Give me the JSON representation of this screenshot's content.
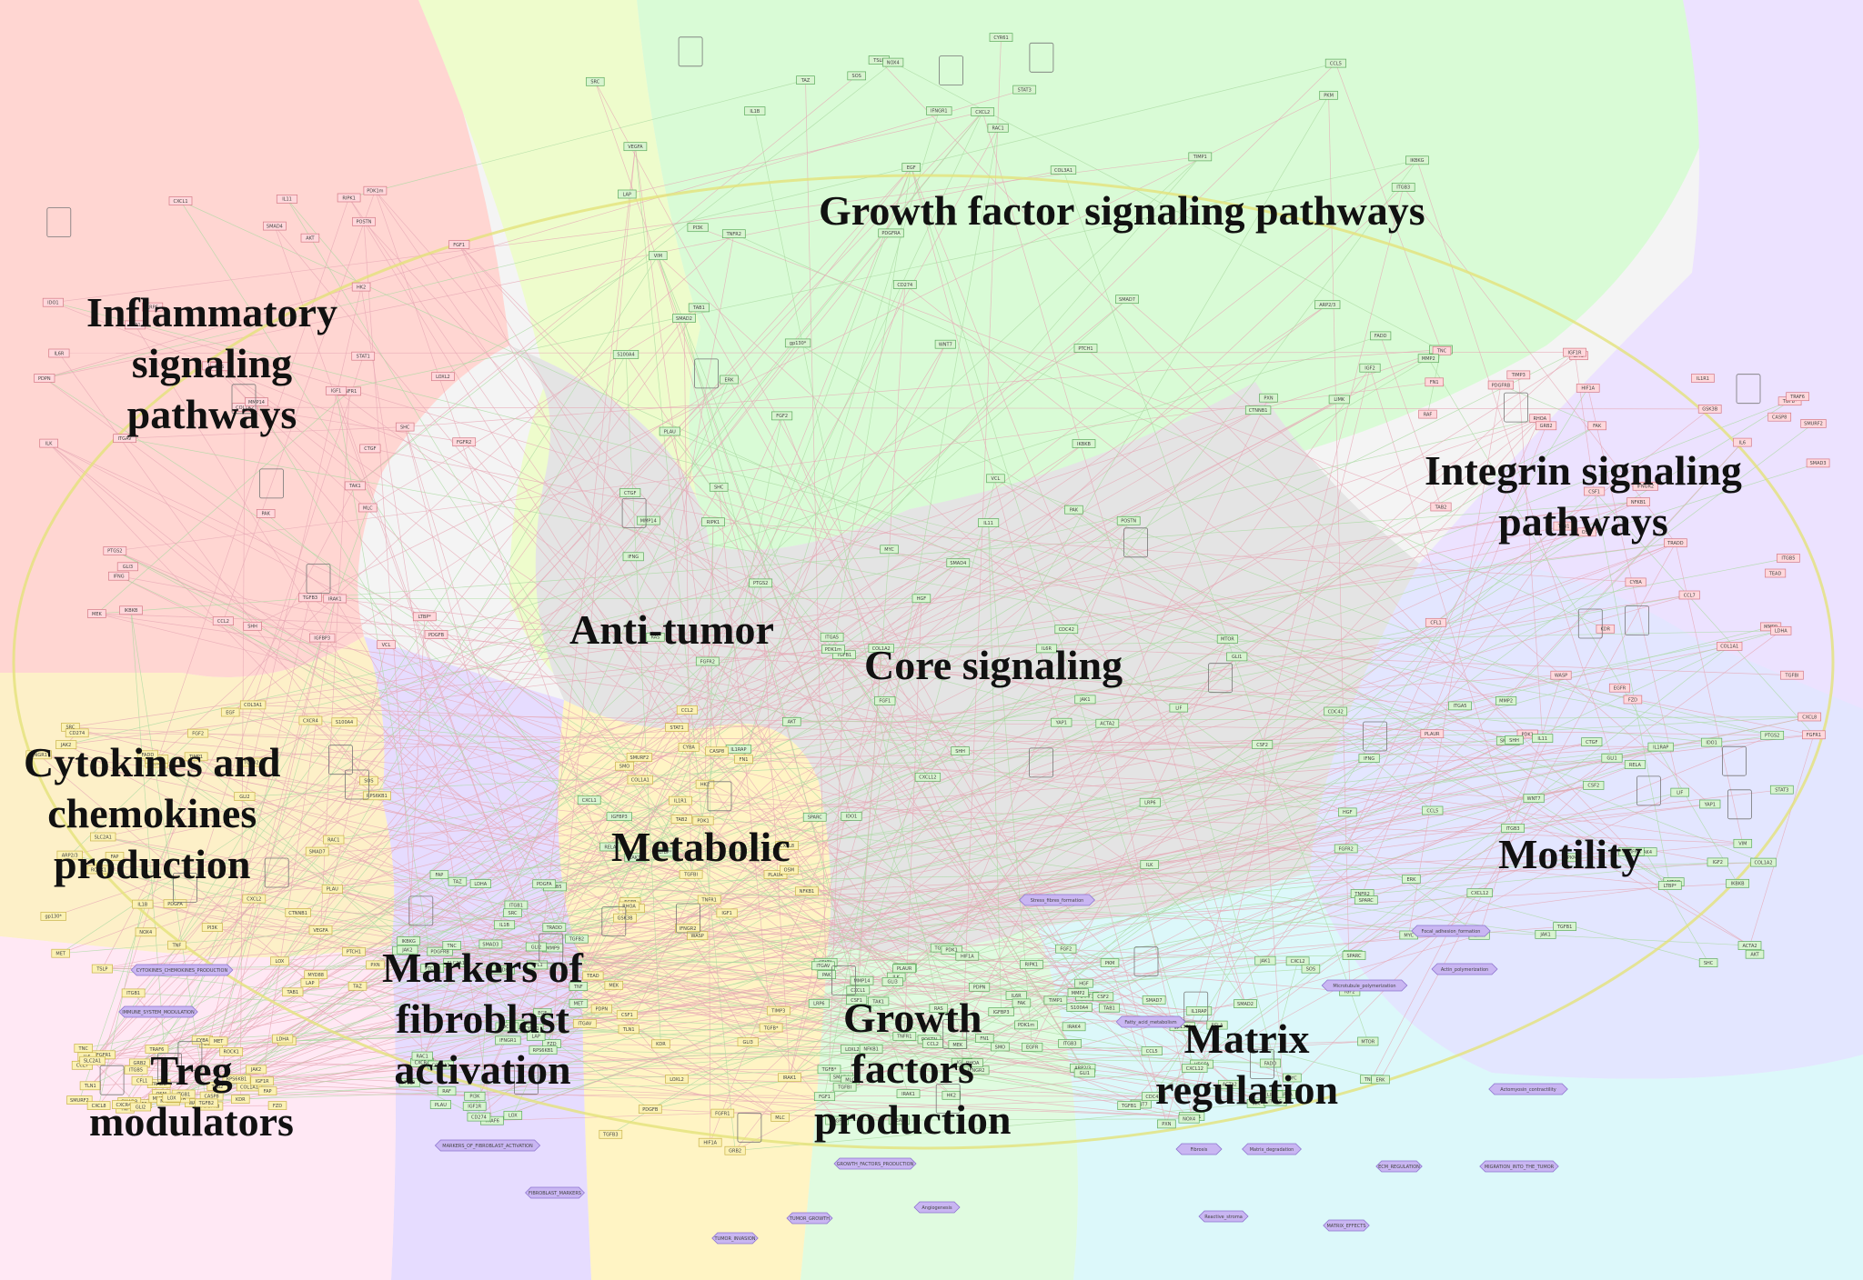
{
  "diagram": {
    "regions": [
      {
        "id": "inflammatory",
        "title": [
          "Inflammatory",
          "signaling",
          "pathways"
        ],
        "color": "#ffd6d2"
      },
      {
        "id": "growth_factor",
        "title": [
          "Growth factor signaling pathways"
        ],
        "color": "#d9fbd6"
      },
      {
        "id": "integrin",
        "title": [
          "Integrin signaling",
          "pathways"
        ],
        "color": "#ece2ff"
      },
      {
        "id": "anti_tumor",
        "title": [
          "Anti-tumor"
        ],
        "color": "#eefccc"
      },
      {
        "id": "core",
        "title": [
          "Core signaling"
        ],
        "color": "#e4e4e4"
      },
      {
        "id": "cytokines",
        "title": [
          "Cytokines and",
          "chemokines",
          "production"
        ],
        "color": "#fdf0c8"
      },
      {
        "id": "metabolic",
        "title": [
          "Metabolic"
        ],
        "color": "#fff4c4"
      },
      {
        "id": "motility",
        "title": [
          "Motility"
        ],
        "color": "#e3e6ff"
      },
      {
        "id": "markers",
        "title": [
          "Markers of",
          "fibroblast",
          "activation"
        ],
        "color": "#e6dcff"
      },
      {
        "id": "gf_production",
        "title": [
          "Growth",
          "factors",
          "production"
        ],
        "color": "#e0fbe0"
      },
      {
        "id": "matrix",
        "title": [
          "Matrix",
          "regulation"
        ],
        "color": "#dcf8fa"
      },
      {
        "id": "treg",
        "title": [
          "Treg",
          "modulators"
        ],
        "color": "#ffe8f4"
      }
    ],
    "colors": {
      "edge": "#e6a7b4",
      "edge_green": "#a9d9a0",
      "ellipse": "#e4e27a",
      "node_green_fill": "#d8f4d0",
      "node_green_stroke": "#5caa5c",
      "node_yellow_fill": "#fbf1b4",
      "node_yellow_stroke": "#c9b34a",
      "node_pink_fill": "#ffd8dc",
      "node_pink_stroke": "#d47a86",
      "phenotype_fill": "#c9b6f2",
      "phenotype_stroke": "#8d74cf"
    },
    "phenotypes": [
      "MIGRATION_INTO_THE_TUMOR",
      "ECM_REGULATION",
      "TUMOR_GROWTH",
      "GROWTH_FACTORS_PRODUCTION",
      "MARKERS_OF_FIBROBLAST_ACTIVATION",
      "FIBROBLAST_MARKERS",
      "TUMOR_INVASION",
      "MATRIX_EFFECTS",
      "CYTOKINES_CHEMOKINES_PRODUCTION",
      "IMMUNE_SYSTEM_MODULATION",
      "Angiogenesis",
      "Reactive_stroma",
      "Fibrosis",
      "Matrix_degradation",
      "Focal_adhesion_formation",
      "Actin_polymerization",
      "Microtubule_polymerization",
      "Actomyosin_contractility",
      "Stress_fibres_formation",
      "Fatty_acid_metabolism"
    ],
    "nodes": [
      "LTBP*",
      "LAP",
      "TGFB*",
      "TGFB1",
      "TGFB2",
      "TGFB3",
      "SMAD2",
      "SMAD3",
      "SMAD4",
      "SMAD7",
      "SMURF2",
      "IFNG",
      "IFNGR1",
      "IFNGR2",
      "JAK1",
      "JAK2",
      "STAT1",
      "STAT3",
      "IL6",
      "IL6R",
      "gp130*",
      "OSM",
      "LIF",
      "IL1B",
      "IL1R1",
      "IL1RAP",
      "MYD88",
      "IRAK1",
      "IRAK4",
      "TRAF6",
      "TAK1",
      "TAB1",
      "TAB2",
      "IKBKB",
      "IKBKG",
      "NFKB1",
      "RELA",
      "TNF",
      "TNFR1",
      "TNFR2",
      "TRADD",
      "RIPK1",
      "FADD",
      "CASP8",
      "PTGS2",
      "PLAU",
      "PLAUR",
      "CXCL12",
      "CXCR4",
      "CCL2",
      "CCL5",
      "CCL7",
      "CXCL1",
      "CXCL2",
      "CXCL8",
      "IL11",
      "TSLP",
      "CSF1",
      "CSF2",
      "PDGFA",
      "PDGFB",
      "PDGFRA",
      "PDGFRB",
      "FGF1",
      "FGF2",
      "FGFR1",
      "FGFR2",
      "EGF",
      "EGFR",
      "HGF",
      "MET",
      "IGF1",
      "IGF2",
      "IGF1R",
      "IGFBP3",
      "VEGFA",
      "KDR",
      "SHH",
      "PTCH1",
      "SMO",
      "GLI1",
      "GLI2",
      "GLI3",
      "WNT7",
      "FZD",
      "LRP6",
      "CTNNB1",
      "GSK3B",
      "AKT",
      "PI3K",
      "PDK1",
      "MTOR",
      "RPS6KB1",
      "MEK",
      "ERK",
      "RAF",
      "RAS",
      "SOS",
      "GRB2",
      "SHC",
      "SRC",
      "FAK",
      "ITGA5",
      "ITGB1",
      "ITGAV",
      "ITGB3",
      "ITGB5",
      "ILK",
      "PXN",
      "TLN1",
      "VCL",
      "RAC1",
      "RHOA",
      "CDC42",
      "ROCK1",
      "MLC",
      "LIMK",
      "CFL1",
      "PAK",
      "ARP2/3",
      "WASP",
      "YAP1",
      "TAZ",
      "TEAD",
      "ACTA2",
      "FAP",
      "PDPN",
      "VIM",
      "TNC",
      "POSTN",
      "S100A4",
      "COL1A1",
      "COL1A2",
      "COL3A1",
      "FN1",
      "SPARC",
      "LOX",
      "LOXL2",
      "MMP2",
      "MMP9",
      "MMP14",
      "TIMP1",
      "TIMP3",
      "CTGF",
      "CYR61",
      "HIF1A",
      "MYC",
      "SLC2A1",
      "HK2",
      "PKM",
      "LDHA",
      "PDK1m",
      "NOX4",
      "CYBA",
      "IDO1",
      "CD274",
      "TGFBI"
    ]
  }
}
